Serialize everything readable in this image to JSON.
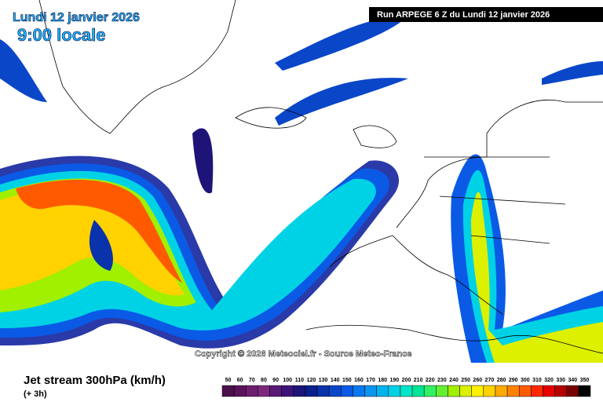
{
  "header": {
    "date": "Lundi 12 janvier 2026",
    "time": "9:00 locale",
    "run": "Run ARPEGE 6 Z du Lundi 12 janvier 2026"
  },
  "copyright": "Copyright © 2026 Meteociel.fr - Source Meteo-France",
  "footer": {
    "title": "Jet stream 300hPa (km/h)",
    "lead": "(+ 3h)"
  },
  "legend": [
    {
      "value": 50,
      "color": "#4b0f4b"
    },
    {
      "value": 60,
      "color": "#5a125a"
    },
    {
      "value": 70,
      "color": "#6e1e6e"
    },
    {
      "value": 80,
      "color": "#7d287d"
    },
    {
      "value": 90,
      "color": "#5a1a78"
    },
    {
      "value": 100,
      "color": "#3c1478"
    },
    {
      "value": 110,
      "color": "#1e1478"
    },
    {
      "value": 120,
      "color": "#0a1e8c"
    },
    {
      "value": 130,
      "color": "#0a32aa"
    },
    {
      "value": 140,
      "color": "#0a46c8"
    },
    {
      "value": 150,
      "color": "#0a5ae6"
    },
    {
      "value": 160,
      "color": "#0a78f0"
    },
    {
      "value": 170,
      "color": "#0a96f0"
    },
    {
      "value": 180,
      "color": "#00b4f0"
    },
    {
      "value": 190,
      "color": "#00d2e6"
    },
    {
      "value": 200,
      "color": "#00e6c8"
    },
    {
      "value": 210,
      "color": "#00e696"
    },
    {
      "value": 220,
      "color": "#32f064"
    },
    {
      "value": 230,
      "color": "#64f032"
    },
    {
      "value": 240,
      "color": "#a0f000"
    },
    {
      "value": 250,
      "color": "#dcf000"
    },
    {
      "value": 260,
      "color": "#fff000"
    },
    {
      "value": 270,
      "color": "#ffd200"
    },
    {
      "value": 280,
      "color": "#ffaa00"
    },
    {
      "value": 290,
      "color": "#ff8200"
    },
    {
      "value": 300,
      "color": "#ff5a00"
    },
    {
      "value": 310,
      "color": "#ff2800"
    },
    {
      "value": 320,
      "color": "#e60000"
    },
    {
      "value": 330,
      "color": "#b40000"
    },
    {
      "value": 340,
      "color": "#780000"
    },
    {
      "value": 350,
      "color": "#000000"
    }
  ]
}
